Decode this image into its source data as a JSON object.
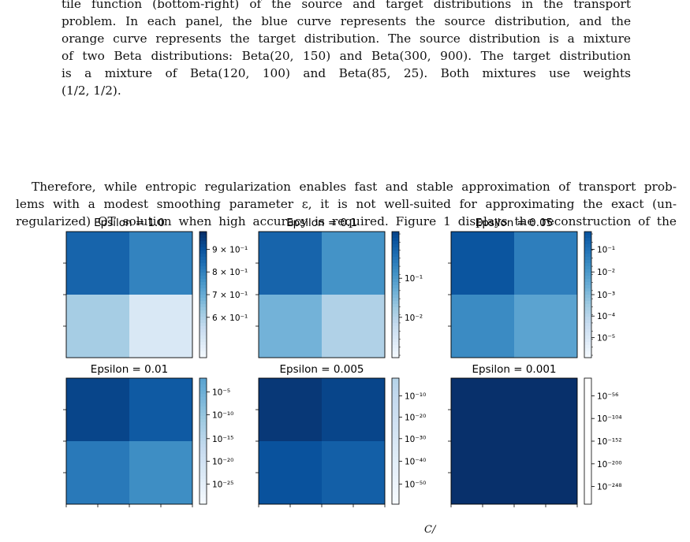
{
  "caption": {
    "lines": [
      "tile function (bottom-right) of the source and target distributions in the transport",
      "problem. In each panel, the blue curve represents the source distribution, and the",
      "orange curve represents the target distribution. The source distribution is a mixture",
      "of two Beta distributions: Beta(20, 150) and Beta(300, 900). The target distribution",
      "is a mixture of Beta(120, 100) and Beta(85, 25).   Both mixtures use weights",
      "(1/2, 1/2)."
    ]
  },
  "body": {
    "lines": [
      "Therefore, while entropic regularization enables fast and stable approximation of transport prob-",
      "lems with a modest smoothing parameter ε, it is not well-suited for approximating the exact (un-",
      "regularized) OT solution when high accuracy is required. Figure 1 displays the reconstruction of the"
    ]
  },
  "bottom_fragment": "C/",
  "chart_data": [
    {
      "type": "heatmap",
      "title": "Epsilon = 1.0",
      "colormap": "Blues",
      "colorbar_scale": "linear",
      "cells": [
        [
          0.8,
          0.68
        ],
        [
          0.35,
          0.15
        ]
      ],
      "colorbar_ticks": [
        {
          "label": "9 × 10⁻¹",
          "pos": 0.86
        },
        {
          "label": "8 × 10⁻¹",
          "pos": 0.68
        },
        {
          "label": "7 × 10⁻¹",
          "pos": 0.5
        },
        {
          "label": "6 × 10⁻¹",
          "pos": 0.32
        }
      ]
    },
    {
      "type": "heatmap",
      "title": "Epsilon = 0.1",
      "colormap": "Blues",
      "colorbar_scale": "log",
      "cells": [
        [
          0.8,
          0.62
        ],
        [
          0.48,
          0.32
        ]
      ],
      "colorbar_ticks": [
        {
          "label": "10⁻¹",
          "pos": 0.63
        },
        {
          "label": "10⁻²",
          "pos": 0.32
        }
      ]
    },
    {
      "type": "heatmap",
      "title": "Epsilon = 0.05",
      "colormap": "Blues",
      "colorbar_scale": "log",
      "cells": [
        [
          0.86,
          0.7
        ],
        [
          0.65,
          0.55
        ]
      ],
      "colorbar_ticks": [
        {
          "label": "10⁻¹",
          "pos": 0.86
        },
        {
          "label": "10⁻²",
          "pos": 0.68
        },
        {
          "label": "10⁻³",
          "pos": 0.5
        },
        {
          "label": "10⁻⁴",
          "pos": 0.33
        },
        {
          "label": "10⁻⁵",
          "pos": 0.16
        }
      ]
    },
    {
      "type": "heatmap",
      "title": "Epsilon = 0.01",
      "colormap": "Blues",
      "colorbar_scale": "log",
      "cells": [
        [
          0.92,
          0.84
        ],
        [
          0.72,
          0.64
        ]
      ],
      "colorbar_ticks": [
        {
          "label": "10⁻⁵",
          "pos": 0.89
        },
        {
          "label": "10⁻¹⁰",
          "pos": 0.71
        },
        {
          "label": "10⁻¹⁵",
          "pos": 0.52
        },
        {
          "label": "10⁻²⁰",
          "pos": 0.34
        },
        {
          "label": "10⁻²⁵",
          "pos": 0.16
        }
      ]
    },
    {
      "type": "heatmap",
      "title": "Epsilon = 0.005",
      "colormap": "Blues",
      "colorbar_scale": "log",
      "cells": [
        [
          0.97,
          0.92
        ],
        [
          0.87,
          0.82
        ]
      ],
      "colorbar_ticks": [
        {
          "label": "10⁻¹⁰",
          "pos": 0.86
        },
        {
          "label": "10⁻²⁰",
          "pos": 0.69
        },
        {
          "label": "10⁻³⁰",
          "pos": 0.52
        },
        {
          "label": "10⁻⁴⁰",
          "pos": 0.34
        },
        {
          "label": "10⁻⁵⁰",
          "pos": 0.16
        }
      ]
    },
    {
      "type": "heatmap",
      "title": "Epsilon = 0.001",
      "colormap": "Blues",
      "colorbar_scale": "log",
      "cells": [
        [
          1.0,
          1.0
        ],
        [
          1.0,
          1.0
        ]
      ],
      "colorbar_ticks": [
        {
          "label": "10⁻⁵⁶",
          "pos": 0.86
        },
        {
          "label": "10⁻¹⁰⁴",
          "pos": 0.68
        },
        {
          "label": "10⁻¹⁵²",
          "pos": 0.5
        },
        {
          "label": "10⁻²⁰⁰",
          "pos": 0.32
        },
        {
          "label": "10⁻²⁴⁸",
          "pos": 0.14
        }
      ]
    }
  ]
}
